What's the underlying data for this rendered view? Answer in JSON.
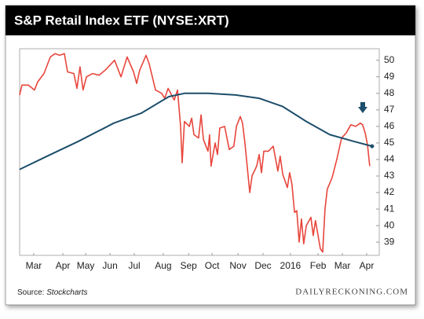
{
  "chart_data": {
    "type": "line",
    "title": "S&P Retail Index ETF (NYSE:XRT)",
    "source_label": "Source:",
    "source_name": "Stockcharts",
    "brand": "DAILYRECKONING.COM",
    "xlim": [
      0,
      14.05
    ],
    "xticks": [
      {
        "value": 0.55,
        "label": "Mar"
      },
      {
        "value": 1.69,
        "label": "Apr"
      },
      {
        "value": 2.58,
        "label": "May"
      },
      {
        "value": 3.53,
        "label": "Jun"
      },
      {
        "value": 4.48,
        "label": "Jul"
      },
      {
        "value": 5.61,
        "label": "Aug"
      },
      {
        "value": 6.6,
        "label": "Sep"
      },
      {
        "value": 7.52,
        "label": "Oct"
      },
      {
        "value": 8.53,
        "label": "Nov"
      },
      {
        "value": 9.51,
        "label": "Dec"
      },
      {
        "value": 10.58,
        "label": "2016"
      },
      {
        "value": 11.66,
        "label": "Feb"
      },
      {
        "value": 12.61,
        "label": "Mar"
      },
      {
        "value": 13.56,
        "label": "Apr"
      }
    ],
    "ylim": [
      38.2,
      50.7
    ],
    "yticks": [
      39,
      40,
      41,
      42,
      43,
      44,
      45,
      46,
      47,
      48,
      49,
      50
    ],
    "series": [
      {
        "color": "#e8463c",
        "x": [
          0,
          0.09,
          0.34,
          0.58,
          0.71,
          0.95,
          1.2,
          1.38,
          1.56,
          1.75,
          1.87,
          2.12,
          2.24,
          2.36,
          2.48,
          2.61,
          2.85,
          3.1,
          3.34,
          3.47,
          3.71,
          3.96,
          4.2,
          4.45,
          4.57,
          4.69,
          4.94,
          5.06,
          5.31,
          5.55,
          5.67,
          5.8,
          6.04,
          6.17,
          6.29,
          6.35,
          6.44,
          6.63,
          6.72,
          6.81,
          6.99,
          7.09,
          7.18,
          7.36,
          7.42,
          7.48,
          7.64,
          7.73,
          7.82,
          8.01,
          8.19,
          8.37,
          8.47,
          8.62,
          8.71,
          8.8,
          8.99,
          9.08,
          9.26,
          9.36,
          9.45,
          9.54,
          9.72,
          9.91,
          10.09,
          10.18,
          10.28,
          10.46,
          10.55,
          10.64,
          10.74,
          10.83,
          10.92,
          11.01,
          11.1,
          11.2,
          11.38,
          11.47,
          11.56,
          11.75,
          11.84,
          11.93,
          12.02,
          12.21,
          12.39,
          12.58,
          12.76,
          12.94,
          13.13,
          13.31,
          13.4,
          13.5,
          13.59,
          13.68
        ],
        "values": [
          47.9,
          48.5,
          48.5,
          48.2,
          48.7,
          49.2,
          50.2,
          50.4,
          50.3,
          50.4,
          49.3,
          49.2,
          48.3,
          49.6,
          48.2,
          49.0,
          49.2,
          49.1,
          49.4,
          49.6,
          50.0,
          49.0,
          50.2,
          49.3,
          48.6,
          49.4,
          50.3,
          49.8,
          48.2,
          48.0,
          47.7,
          48.3,
          47.6,
          48.2,
          46.0,
          43.8,
          46.3,
          46.0,
          46.5,
          45.5,
          45.3,
          46.7,
          45.2,
          44.5,
          45.5,
          43.6,
          45.0,
          44.3,
          45.9,
          46.0,
          44.6,
          44.8,
          46.0,
          46.6,
          46.2,
          45.0,
          42.0,
          43.0,
          43.6,
          44.3,
          43.2,
          44.5,
          44.5,
          44.8,
          43.3,
          44.2,
          43.1,
          42.3,
          43.2,
          42.5,
          40.8,
          40.9,
          39.0,
          40.4,
          38.9,
          40.0,
          40.5,
          39.4,
          40.3,
          38.6,
          38.4,
          41.0,
          42.2,
          42.9,
          44.0,
          45.3,
          45.6,
          46.1,
          46.0,
          46.2,
          46.1,
          45.6,
          44.9,
          43.6
        ]
      },
      {
        "color": "#1d4e6b",
        "x": [
          0,
          1.07,
          2.3,
          3.68,
          4.75,
          5.83,
          6.44,
          7.36,
          8.44,
          9.36,
          10.28,
          11.2,
          12.12,
          13.04,
          13.77
        ],
        "values": [
          43.4,
          44.2,
          45.1,
          46.2,
          46.8,
          47.8,
          48.0,
          48.0,
          47.9,
          47.7,
          47.2,
          46.3,
          45.5,
          45.1,
          44.8
        ]
      }
    ]
  }
}
